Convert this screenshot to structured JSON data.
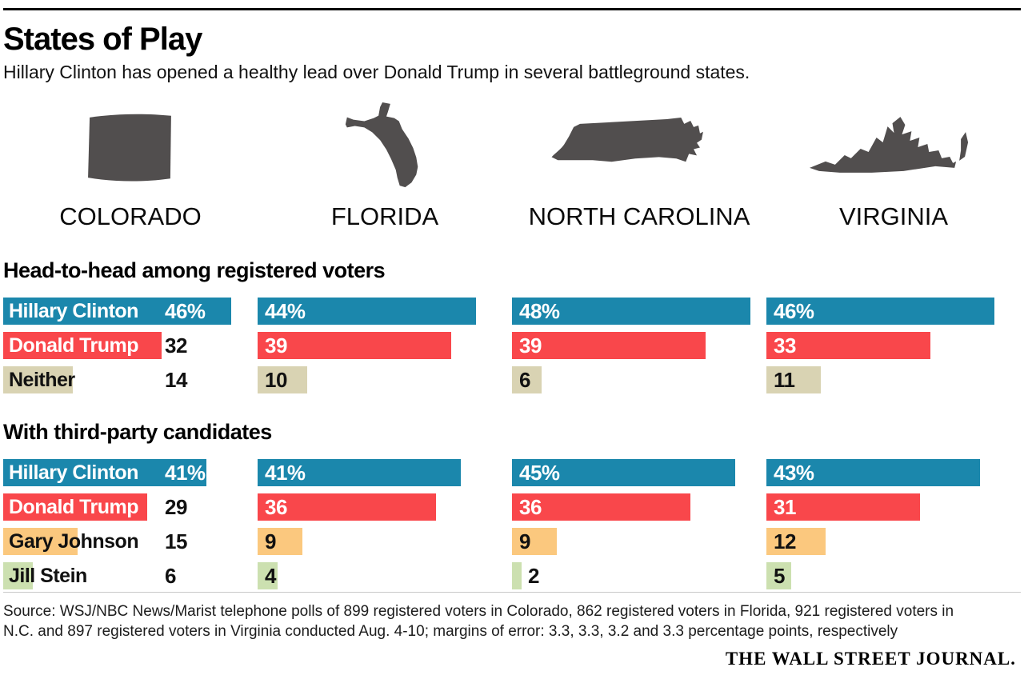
{
  "header": {
    "title": "States of Play",
    "subtitle": "Hillary Clinton has opened a healthy lead over Donald Trump in several battleground states."
  },
  "states": [
    "COLORADO",
    "FLORIDA",
    "NORTH CAROLINA",
    "VIRGINIA"
  ],
  "colors": {
    "clinton": "#1b87ac",
    "trump": "#f9474b",
    "neither": "#d9d3b3",
    "johnson": "#fbc87e",
    "stein": "#cce0b0",
    "state_silhouette": "#514e4e",
    "bar_text_light": "#ffffff",
    "bar_text_dark": "#111111"
  },
  "chart_data": [
    {
      "type": "bar",
      "title": "Head-to-head among registered voters",
      "categories": [
        "Colorado",
        "Florida",
        "North Carolina",
        "Virginia"
      ],
      "xlim": [
        0,
        50
      ],
      "grid": false,
      "legend": "labels-in-first-column",
      "series": [
        {
          "name": "Hillary Clinton",
          "color_key": "clinton",
          "display_suffix": "%",
          "values": [
            46,
            44,
            48,
            46
          ]
        },
        {
          "name": "Donald Trump",
          "color_key": "trump",
          "display_suffix": "",
          "values": [
            32,
            39,
            39,
            33
          ]
        },
        {
          "name": "Neither",
          "color_key": "neither",
          "display_suffix": "",
          "values": [
            14,
            10,
            6,
            11
          ]
        }
      ]
    },
    {
      "type": "bar",
      "title": "With third-party candidates",
      "categories": [
        "Colorado",
        "Florida",
        "North Carolina",
        "Virginia"
      ],
      "xlim": [
        0,
        50
      ],
      "grid": false,
      "legend": "labels-in-first-column",
      "series": [
        {
          "name": "Hillary Clinton",
          "color_key": "clinton",
          "display_suffix": "%",
          "values": [
            41,
            41,
            45,
            43
          ]
        },
        {
          "name": "Donald Trump",
          "color_key": "trump",
          "display_suffix": "",
          "values": [
            29,
            36,
            36,
            31
          ]
        },
        {
          "name": "Gary Johnson",
          "color_key": "johnson",
          "display_suffix": "",
          "values": [
            15,
            9,
            9,
            12
          ]
        },
        {
          "name": "Jill Stein",
          "color_key": "stein",
          "display_suffix": "",
          "values": [
            6,
            4,
            2,
            5
          ]
        }
      ]
    }
  ],
  "footer": {
    "source_line1": "Source: WSJ/NBC News/Marist telephone polls of 899 registered voters in Colorado, 862 registered voters in Florida, 921 registered voters in",
    "source_line2": "N.C. and 897 registered voters in Virginia conducted Aug. 4-10; margins of error: 3.3, 3.3, 3.2 and 3.3 percentage points, respectively",
    "logo": "THE WALL STREET JOURNAL."
  }
}
